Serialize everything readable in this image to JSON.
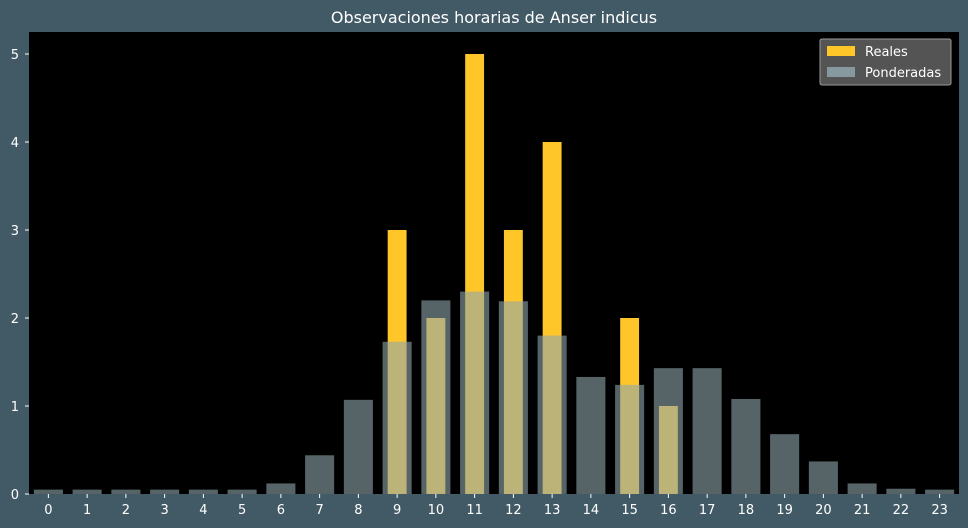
{
  "chart_data": {
    "type": "bar",
    "title": "Observaciones horarias de Anser indicus",
    "xlabel": "",
    "ylabel": "",
    "categories": [
      "0",
      "1",
      "2",
      "3",
      "4",
      "5",
      "6",
      "7",
      "8",
      "9",
      "10",
      "11",
      "12",
      "13",
      "14",
      "15",
      "16",
      "17",
      "18",
      "19",
      "20",
      "21",
      "22",
      "23"
    ],
    "ylim": [
      0,
      5.25
    ],
    "yticks": [
      0,
      1,
      2,
      3,
      4,
      5
    ],
    "grid": false,
    "legend_position": "top-right",
    "series": [
      {
        "name": "Reales",
        "color": "#ffc629",
        "values": [
          0,
          0,
          0,
          0,
          0,
          0,
          0,
          0,
          0,
          3,
          2,
          5,
          3,
          4,
          0,
          2,
          1,
          0,
          0,
          0,
          0,
          0,
          0,
          0
        ]
      },
      {
        "name": "Ponderadas",
        "color": "#8fa6ad",
        "opacity": 0.6,
        "values": [
          0.05,
          0.05,
          0.05,
          0.05,
          0.05,
          0.05,
          0.12,
          0.44,
          1.07,
          1.73,
          2.2,
          2.3,
          2.19,
          1.8,
          1.33,
          1.24,
          1.43,
          1.43,
          1.08,
          0.68,
          0.37,
          0.12,
          0.06,
          0.05
        ]
      }
    ]
  }
}
